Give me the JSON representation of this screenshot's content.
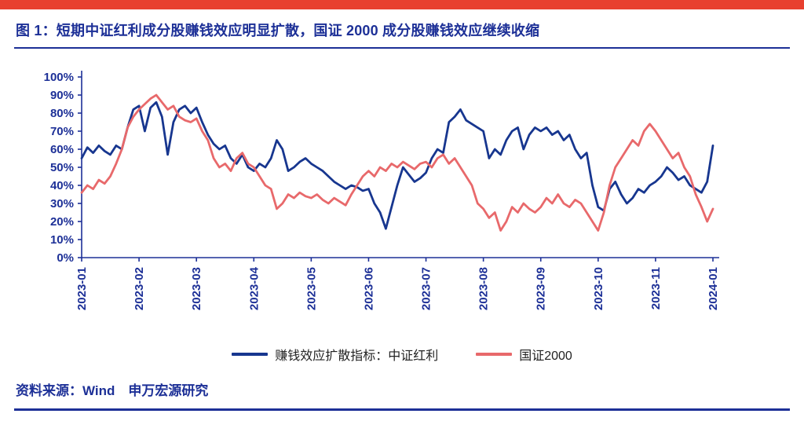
{
  "page": {
    "title": "图 1：短期中证红利成分股赚钱效应明显扩散，国证 2000 成分股赚钱效应继续收缩",
    "source": "资料来源：Wind　申万宏源研究",
    "accent_bar_color": "#e8402f",
    "navy_color": "#1d3097"
  },
  "chart_data": {
    "type": "line",
    "title": "",
    "xlabel": "",
    "ylabel": "",
    "ylim": [
      0,
      100
    ],
    "ytick_step": 10,
    "ytick_suffix": "%",
    "grid": false,
    "legend_position": "bottom",
    "x_ticklabels": [
      "2023-01",
      "2023-02",
      "2023-03",
      "2023-04",
      "2023-05",
      "2023-06",
      "2023-07",
      "2023-08",
      "2023-09",
      "2023-10",
      "2023-11",
      "2024-01"
    ],
    "series": [
      {
        "name": "赚钱效应扩散指标：中证红利",
        "color": "#17368f",
        "values": [
          55,
          61,
          58,
          62,
          59,
          57,
          62,
          60,
          72,
          82,
          84,
          70,
          83,
          86,
          78,
          57,
          75,
          82,
          84,
          80,
          83,
          75,
          68,
          63,
          60,
          62,
          55,
          52,
          57,
          50,
          48,
          52,
          50,
          55,
          65,
          60,
          48,
          50,
          53,
          55,
          52,
          50,
          48,
          45,
          42,
          40,
          38,
          40,
          39,
          37,
          38,
          30,
          25,
          16,
          28,
          40,
          50,
          46,
          42,
          44,
          47,
          55,
          60,
          58,
          75,
          78,
          82,
          76,
          74,
          72,
          70,
          55,
          60,
          57,
          65,
          70,
          72,
          60,
          68,
          72,
          70,
          72,
          68,
          70,
          65,
          68,
          60,
          55,
          58,
          40,
          28,
          26,
          38,
          42,
          35,
          30,
          33,
          38,
          36,
          40,
          42,
          45,
          50,
          47,
          43,
          45,
          40,
          38,
          36,
          42,
          62
        ]
      },
      {
        "name": "国证2000",
        "color": "#e8696b",
        "values": [
          36,
          40,
          38,
          43,
          41,
          45,
          52,
          60,
          72,
          78,
          82,
          85,
          88,
          90,
          86,
          82,
          84,
          78,
          76,
          75,
          77,
          70,
          65,
          55,
          50,
          52,
          48,
          55,
          58,
          52,
          50,
          45,
          40,
          38,
          27,
          30,
          35,
          33,
          36,
          34,
          33,
          35,
          32,
          30,
          33,
          31,
          29,
          35,
          40,
          45,
          48,
          45,
          50,
          48,
          52,
          50,
          53,
          51,
          49,
          52,
          53,
          50,
          55,
          57,
          52,
          55,
          50,
          45,
          40,
          30,
          27,
          22,
          25,
          15,
          20,
          28,
          25,
          30,
          27,
          25,
          28,
          33,
          30,
          35,
          30,
          28,
          32,
          30,
          25,
          20,
          15,
          25,
          40,
          50,
          55,
          60,
          65,
          62,
          70,
          74,
          70,
          65,
          60,
          55,
          58,
          50,
          45,
          35,
          28,
          20,
          27
        ]
      }
    ]
  }
}
